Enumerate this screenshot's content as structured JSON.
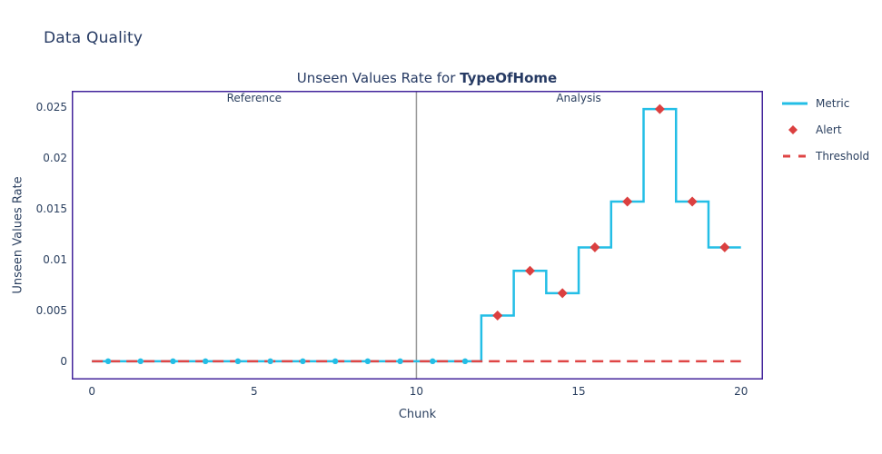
{
  "page": {
    "title": "Data Quality"
  },
  "chart": {
    "title_prefix": "Unseen Values Rate for ",
    "title_bold": "TypeOfHome",
    "xlabel": "Chunk",
    "ylabel": "Unseen Values Rate",
    "region_labels": {
      "reference": "Reference",
      "analysis": "Analysis"
    },
    "legend": [
      {
        "label": "Metric",
        "swatch": "line",
        "color_key": "metric"
      },
      {
        "label": "Alert",
        "swatch": "diamond",
        "color_key": "alert"
      },
      {
        "label": "Threshold",
        "swatch": "dash",
        "color_key": "threshold"
      }
    ]
  },
  "colors": {
    "metric": "#23BEE6",
    "alert": "#DB4040",
    "threshold": "#DF4545",
    "border": "#43249B",
    "divider": "#999999",
    "text": "#2A3F5F",
    "header": "#263A63"
  },
  "chart_data": {
    "type": "line",
    "mode": "step-after",
    "title": "Unseen Values Rate for TypeOfHome",
    "xlabel": "Chunk",
    "ylabel": "Unseen Values Rate",
    "n_chunks": 20,
    "reference_split": 10,
    "x_chunks": [
      0,
      1,
      2,
      3,
      4,
      5,
      6,
      7,
      8,
      9,
      10,
      11,
      12,
      13,
      14,
      15,
      16,
      17,
      18,
      19
    ],
    "values": [
      0,
      0,
      0,
      0,
      0,
      0,
      0,
      0,
      0,
      0,
      0,
      0,
      0.0045,
      0.0089,
      0.0067,
      0.0112,
      0.0157,
      0.0248,
      0.0157,
      0.0112
    ],
    "dot_chunks": [
      0,
      1,
      2,
      3,
      4,
      5,
      6,
      7,
      8,
      9,
      10,
      11
    ],
    "alert_chunks": [
      12,
      13,
      14,
      15,
      16,
      17,
      18,
      19
    ],
    "threshold": 0,
    "xtick_values": [
      0,
      5,
      10,
      15,
      20
    ],
    "xtick_labels": [
      "0",
      "5",
      "10",
      "15",
      "20"
    ],
    "ytick_values": [
      0,
      0.005,
      0.01,
      0.015,
      0.02,
      0.025
    ],
    "ytick_labels": [
      "0",
      "0.005",
      "0.01",
      "0.015",
      "0.02",
      "0.025"
    ],
    "xlim": [
      -0.62,
      20.68
    ],
    "ylim": [
      -0.0018,
      0.0266
    ],
    "grid": false,
    "legend_position": "right"
  }
}
